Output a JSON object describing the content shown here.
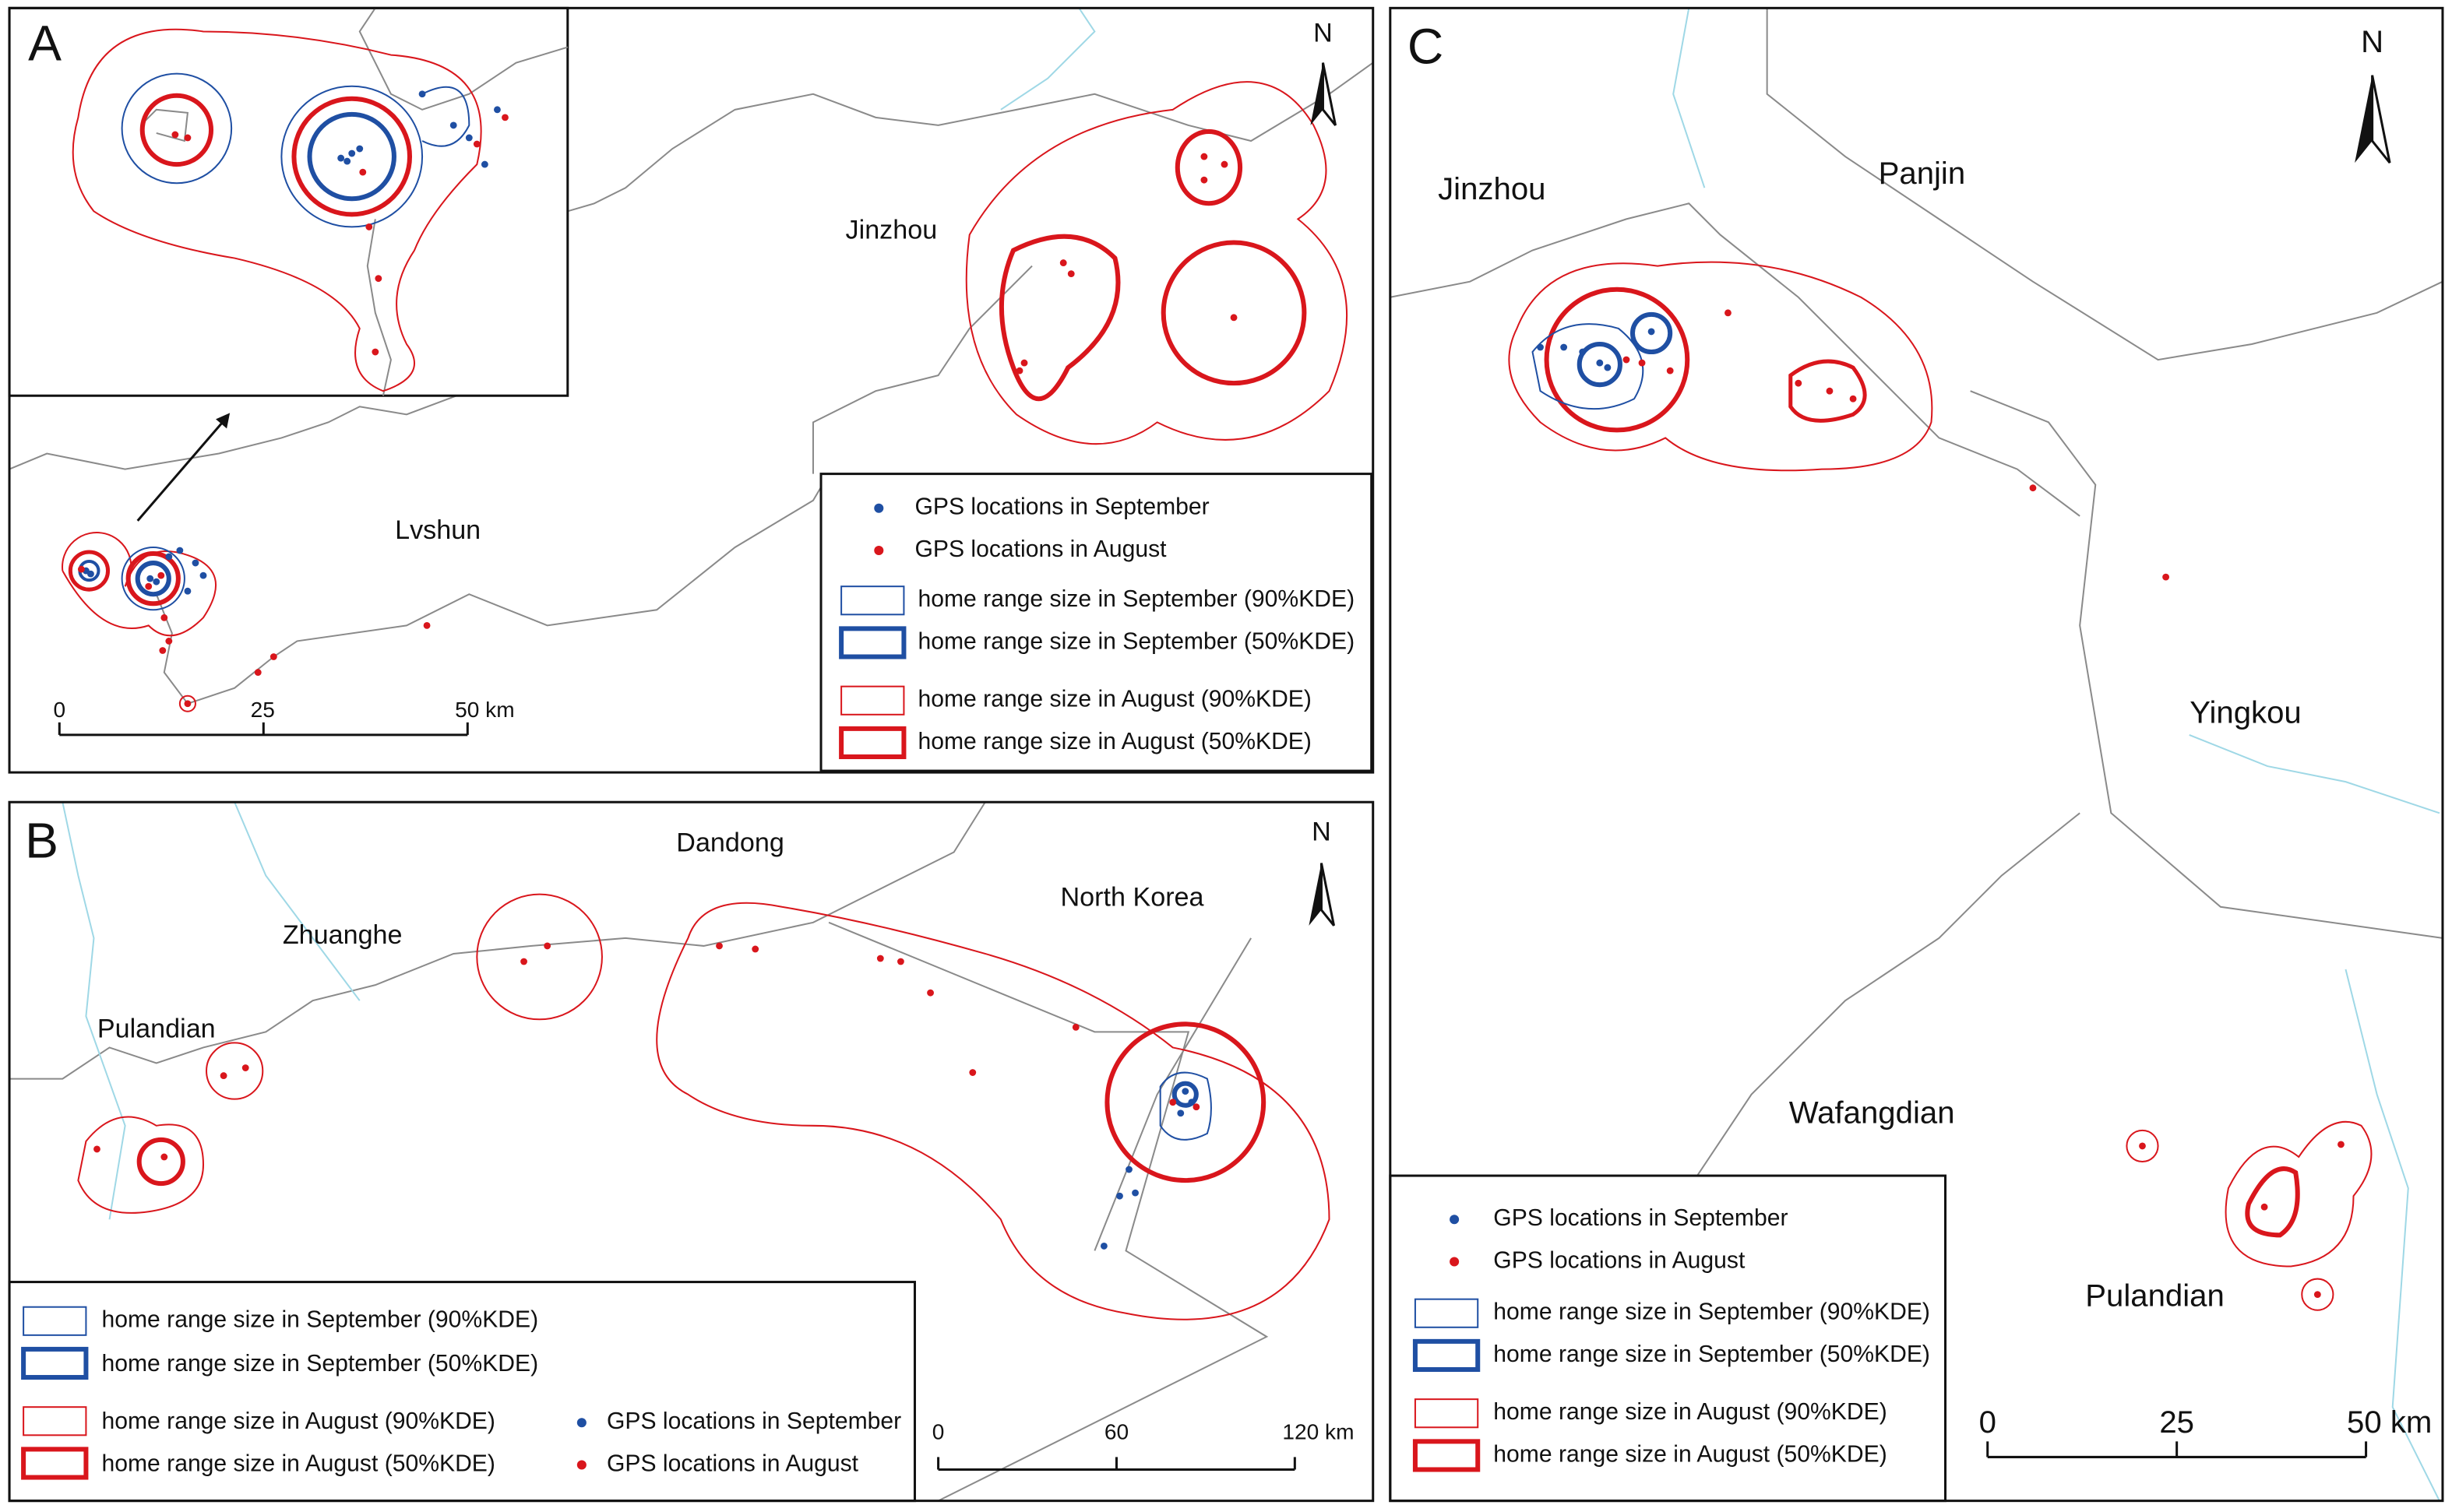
{
  "panels": [
    {
      "label": "A",
      "north": "N",
      "places": [
        "Jinzhou",
        "Lvshun"
      ],
      "legend": [
        "GPS locations in September",
        "GPS locations in August",
        "home range size in September (90%KDE)",
        "home range size in September (50%KDE)",
        "home range size in August (90%KDE)",
        "home range size in August (50%KDE)"
      ],
      "scale": [
        "0",
        "25",
        "50 km"
      ]
    },
    {
      "label": "B",
      "north": "N",
      "places": [
        "Dandong",
        "Zhuanghe",
        "North Korea",
        "Pulandian"
      ],
      "legend": [
        "home range size in September (90%KDE)",
        "home range size in September (50%KDE)",
        "home range size in August (90%KDE)",
        "home range size in August (50%KDE)",
        "GPS locations in September",
        "GPS locations in August"
      ],
      "scale": [
        "0",
        "60",
        "120 km"
      ]
    },
    {
      "label": "C",
      "north": "N",
      "places": [
        "Jinzhou",
        "Panjin",
        "Yingkou",
        "Wafangdian",
        "Pulandian"
      ],
      "legend": [
        "GPS locations in September",
        "GPS locations in August",
        "home range size in September (90%KDE)",
        "home range size in September (50%KDE)",
        "home range size in August (90%KDE)",
        "home range size in August (50%KDE)"
      ],
      "scale": [
        "0",
        "25",
        "50 km"
      ]
    }
  ]
}
